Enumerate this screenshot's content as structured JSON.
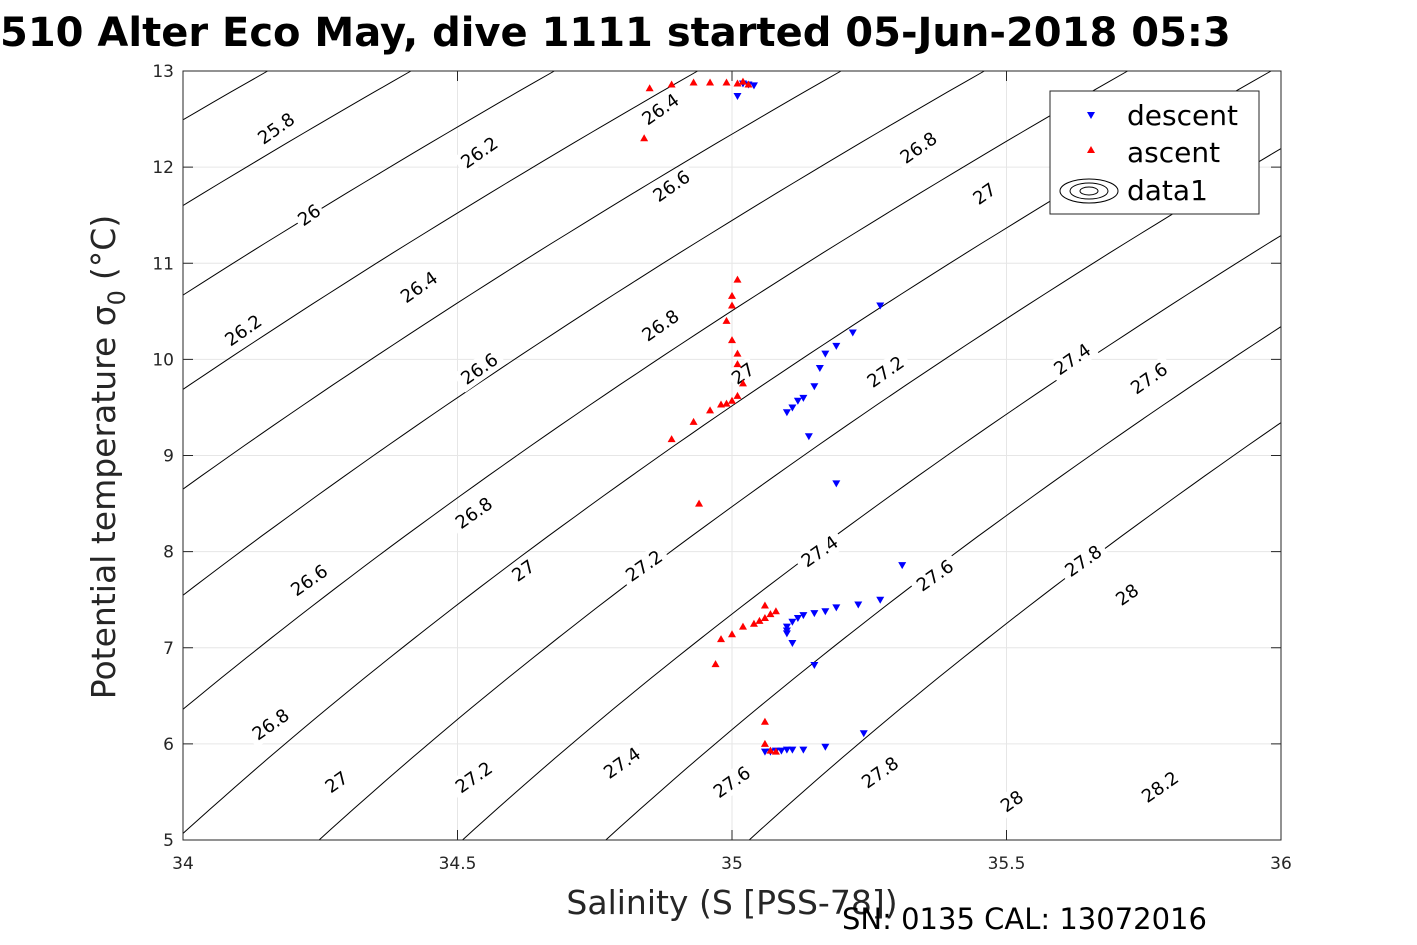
{
  "chart_data": {
    "type": "scatter",
    "title": "510 Alter Eco May, dive 1111 started 05-Jun-2018 05:3",
    "xlabel": "Salinity (S [PSS-78])",
    "ylabel": "Potential temperature σ",
    "ylabel_sub": "0",
    "ylabel_unit": "(°C)",
    "xlim": [
      34,
      36
    ],
    "ylim": [
      5,
      13
    ],
    "grid": true,
    "x_ticks": [
      34,
      34.5,
      35,
      35.5,
      36
    ],
    "x_tick_labels": [
      "34",
      "34.5",
      "35",
      "35.5",
      "36"
    ],
    "y_ticks": [
      5,
      6,
      7,
      8,
      9,
      10,
      11,
      12,
      13
    ],
    "y_tick_labels": [
      "5",
      "6",
      "7",
      "8",
      "9",
      "10",
      "11",
      "12",
      "13"
    ],
    "legend_position": "top-right",
    "footer": "SN: 0135  CAL: 13072016",
    "series": [
      {
        "name": "descent",
        "marker": "triangle-down",
        "color": "#0000ff",
        "points": [
          [
            35.01,
            12.74
          ],
          [
            35.03,
            12.86
          ],
          [
            35.04,
            12.85
          ],
          [
            35.02,
            12.87
          ],
          [
            35.27,
            10.56
          ],
          [
            35.22,
            10.28
          ],
          [
            35.19,
            10.14
          ],
          [
            35.17,
            10.06
          ],
          [
            35.16,
            9.91
          ],
          [
            35.15,
            9.72
          ],
          [
            35.13,
            9.6
          ],
          [
            35.12,
            9.57
          ],
          [
            35.11,
            9.5
          ],
          [
            35.1,
            9.45
          ],
          [
            35.14,
            9.2
          ],
          [
            35.19,
            8.71
          ],
          [
            35.31,
            7.86
          ],
          [
            35.27,
            7.5
          ],
          [
            35.23,
            7.45
          ],
          [
            35.19,
            7.42
          ],
          [
            35.17,
            7.38
          ],
          [
            35.15,
            7.36
          ],
          [
            35.13,
            7.34
          ],
          [
            35.12,
            7.31
          ],
          [
            35.11,
            7.27
          ],
          [
            35.1,
            7.22
          ],
          [
            35.1,
            7.18
          ],
          [
            35.1,
            7.15
          ],
          [
            35.11,
            7.05
          ],
          [
            35.15,
            6.82
          ],
          [
            35.24,
            6.11
          ],
          [
            35.17,
            5.97
          ],
          [
            35.13,
            5.94
          ],
          [
            35.11,
            5.94
          ],
          [
            35.1,
            5.94
          ],
          [
            35.09,
            5.93
          ],
          [
            35.08,
            5.93
          ],
          [
            35.07,
            5.92
          ],
          [
            35.06,
            5.92
          ]
        ]
      },
      {
        "name": "ascent",
        "marker": "triangle-up",
        "color": "#ff0000",
        "points": [
          [
            34.85,
            12.82
          ],
          [
            34.89,
            12.86
          ],
          [
            34.93,
            12.88
          ],
          [
            34.96,
            12.88
          ],
          [
            34.99,
            12.88
          ],
          [
            35.01,
            12.87
          ],
          [
            35.02,
            12.89
          ],
          [
            35.03,
            12.86
          ],
          [
            34.84,
            12.3
          ],
          [
            35.01,
            10.83
          ],
          [
            35.0,
            10.66
          ],
          [
            35.0,
            10.56
          ],
          [
            34.99,
            10.4
          ],
          [
            35.0,
            10.2
          ],
          [
            35.01,
            10.06
          ],
          [
            35.01,
            9.95
          ],
          [
            35.02,
            9.75
          ],
          [
            35.01,
            9.62
          ],
          [
            35.0,
            9.57
          ],
          [
            34.99,
            9.54
          ],
          [
            34.98,
            9.53
          ],
          [
            34.96,
            9.47
          ],
          [
            34.93,
            9.35
          ],
          [
            34.89,
            9.17
          ],
          [
            34.94,
            8.5
          ],
          [
            35.06,
            7.44
          ],
          [
            35.08,
            7.38
          ],
          [
            35.07,
            7.35
          ],
          [
            35.06,
            7.31
          ],
          [
            35.05,
            7.28
          ],
          [
            35.04,
            7.25
          ],
          [
            35.02,
            7.22
          ],
          [
            35.0,
            7.14
          ],
          [
            34.98,
            7.09
          ],
          [
            34.97,
            6.83
          ],
          [
            35.06,
            6.23
          ],
          [
            35.06,
            6.0
          ],
          [
            35.07,
            5.93
          ],
          [
            35.08,
            5.92
          ]
        ]
      },
      {
        "name": "data1",
        "type": "contour",
        "color": "#000000",
        "levels": [
          25.8,
          26,
          26.2,
          26.4,
          26.6,
          26.8,
          27,
          27.2,
          27.4,
          27.6,
          27.8,
          28,
          28.2
        ],
        "contour_labels": [
          {
            "text": "25.8",
            "s": 34.17,
            "t": 12.4
          },
          {
            "text": "26",
            "s": 34.23,
            "t": 11.5
          },
          {
            "text": "26.2",
            "s": 34.11,
            "t": 10.3
          },
          {
            "text": "26.4",
            "s": 34.43,
            "t": 10.75
          },
          {
            "text": "26.6",
            "s": 34.23,
            "t": 7.7
          },
          {
            "text": "26.8",
            "s": 34.16,
            "t": 6.2
          },
          {
            "text": "26.2",
            "s": 34.54,
            "t": 12.15
          },
          {
            "text": "26.6",
            "s": 34.54,
            "t": 9.9
          },
          {
            "text": "26.8",
            "s": 34.53,
            "t": 8.4
          },
          {
            "text": "27",
            "s": 34.28,
            "t": 5.6
          },
          {
            "text": "26.4",
            "s": 34.87,
            "t": 12.6
          },
          {
            "text": "26.6",
            "s": 34.89,
            "t": 11.8
          },
          {
            "text": "26.8",
            "s": 34.87,
            "t": 10.35
          },
          {
            "text": "27",
            "s": 34.62,
            "t": 7.8
          },
          {
            "text": "27.2",
            "s": 34.53,
            "t": 5.65
          },
          {
            "text": "27",
            "s": 35.02,
            "t": 9.85
          },
          {
            "text": "27.2",
            "s": 34.84,
            "t": 7.85
          },
          {
            "text": "27.4",
            "s": 34.8,
            "t": 5.8
          },
          {
            "text": "26.8",
            "s": 35.34,
            "t": 12.2
          },
          {
            "text": "27",
            "s": 35.46,
            "t": 11.72
          },
          {
            "text": "27.2",
            "s": 35.28,
            "t": 9.87
          },
          {
            "text": "27.4",
            "s": 35.16,
            "t": 8.0
          },
          {
            "text": "27.6",
            "s": 35.0,
            "t": 5.6
          },
          {
            "text": "27.4",
            "s": 35.62,
            "t": 10.0
          },
          {
            "text": "27.6",
            "s": 35.37,
            "t": 7.75
          },
          {
            "text": "27.8",
            "s": 35.27,
            "t": 5.7
          },
          {
            "text": "27.6",
            "s": 35.76,
            "t": 9.8
          },
          {
            "text": "27.8",
            "s": 35.64,
            "t": 7.9
          },
          {
            "text": "28",
            "s": 35.72,
            "t": 7.55
          },
          {
            "text": "28",
            "s": 35.51,
            "t": 5.4
          },
          {
            "text": "28.2",
            "s": 35.78,
            "t": 5.55
          }
        ]
      }
    ]
  }
}
